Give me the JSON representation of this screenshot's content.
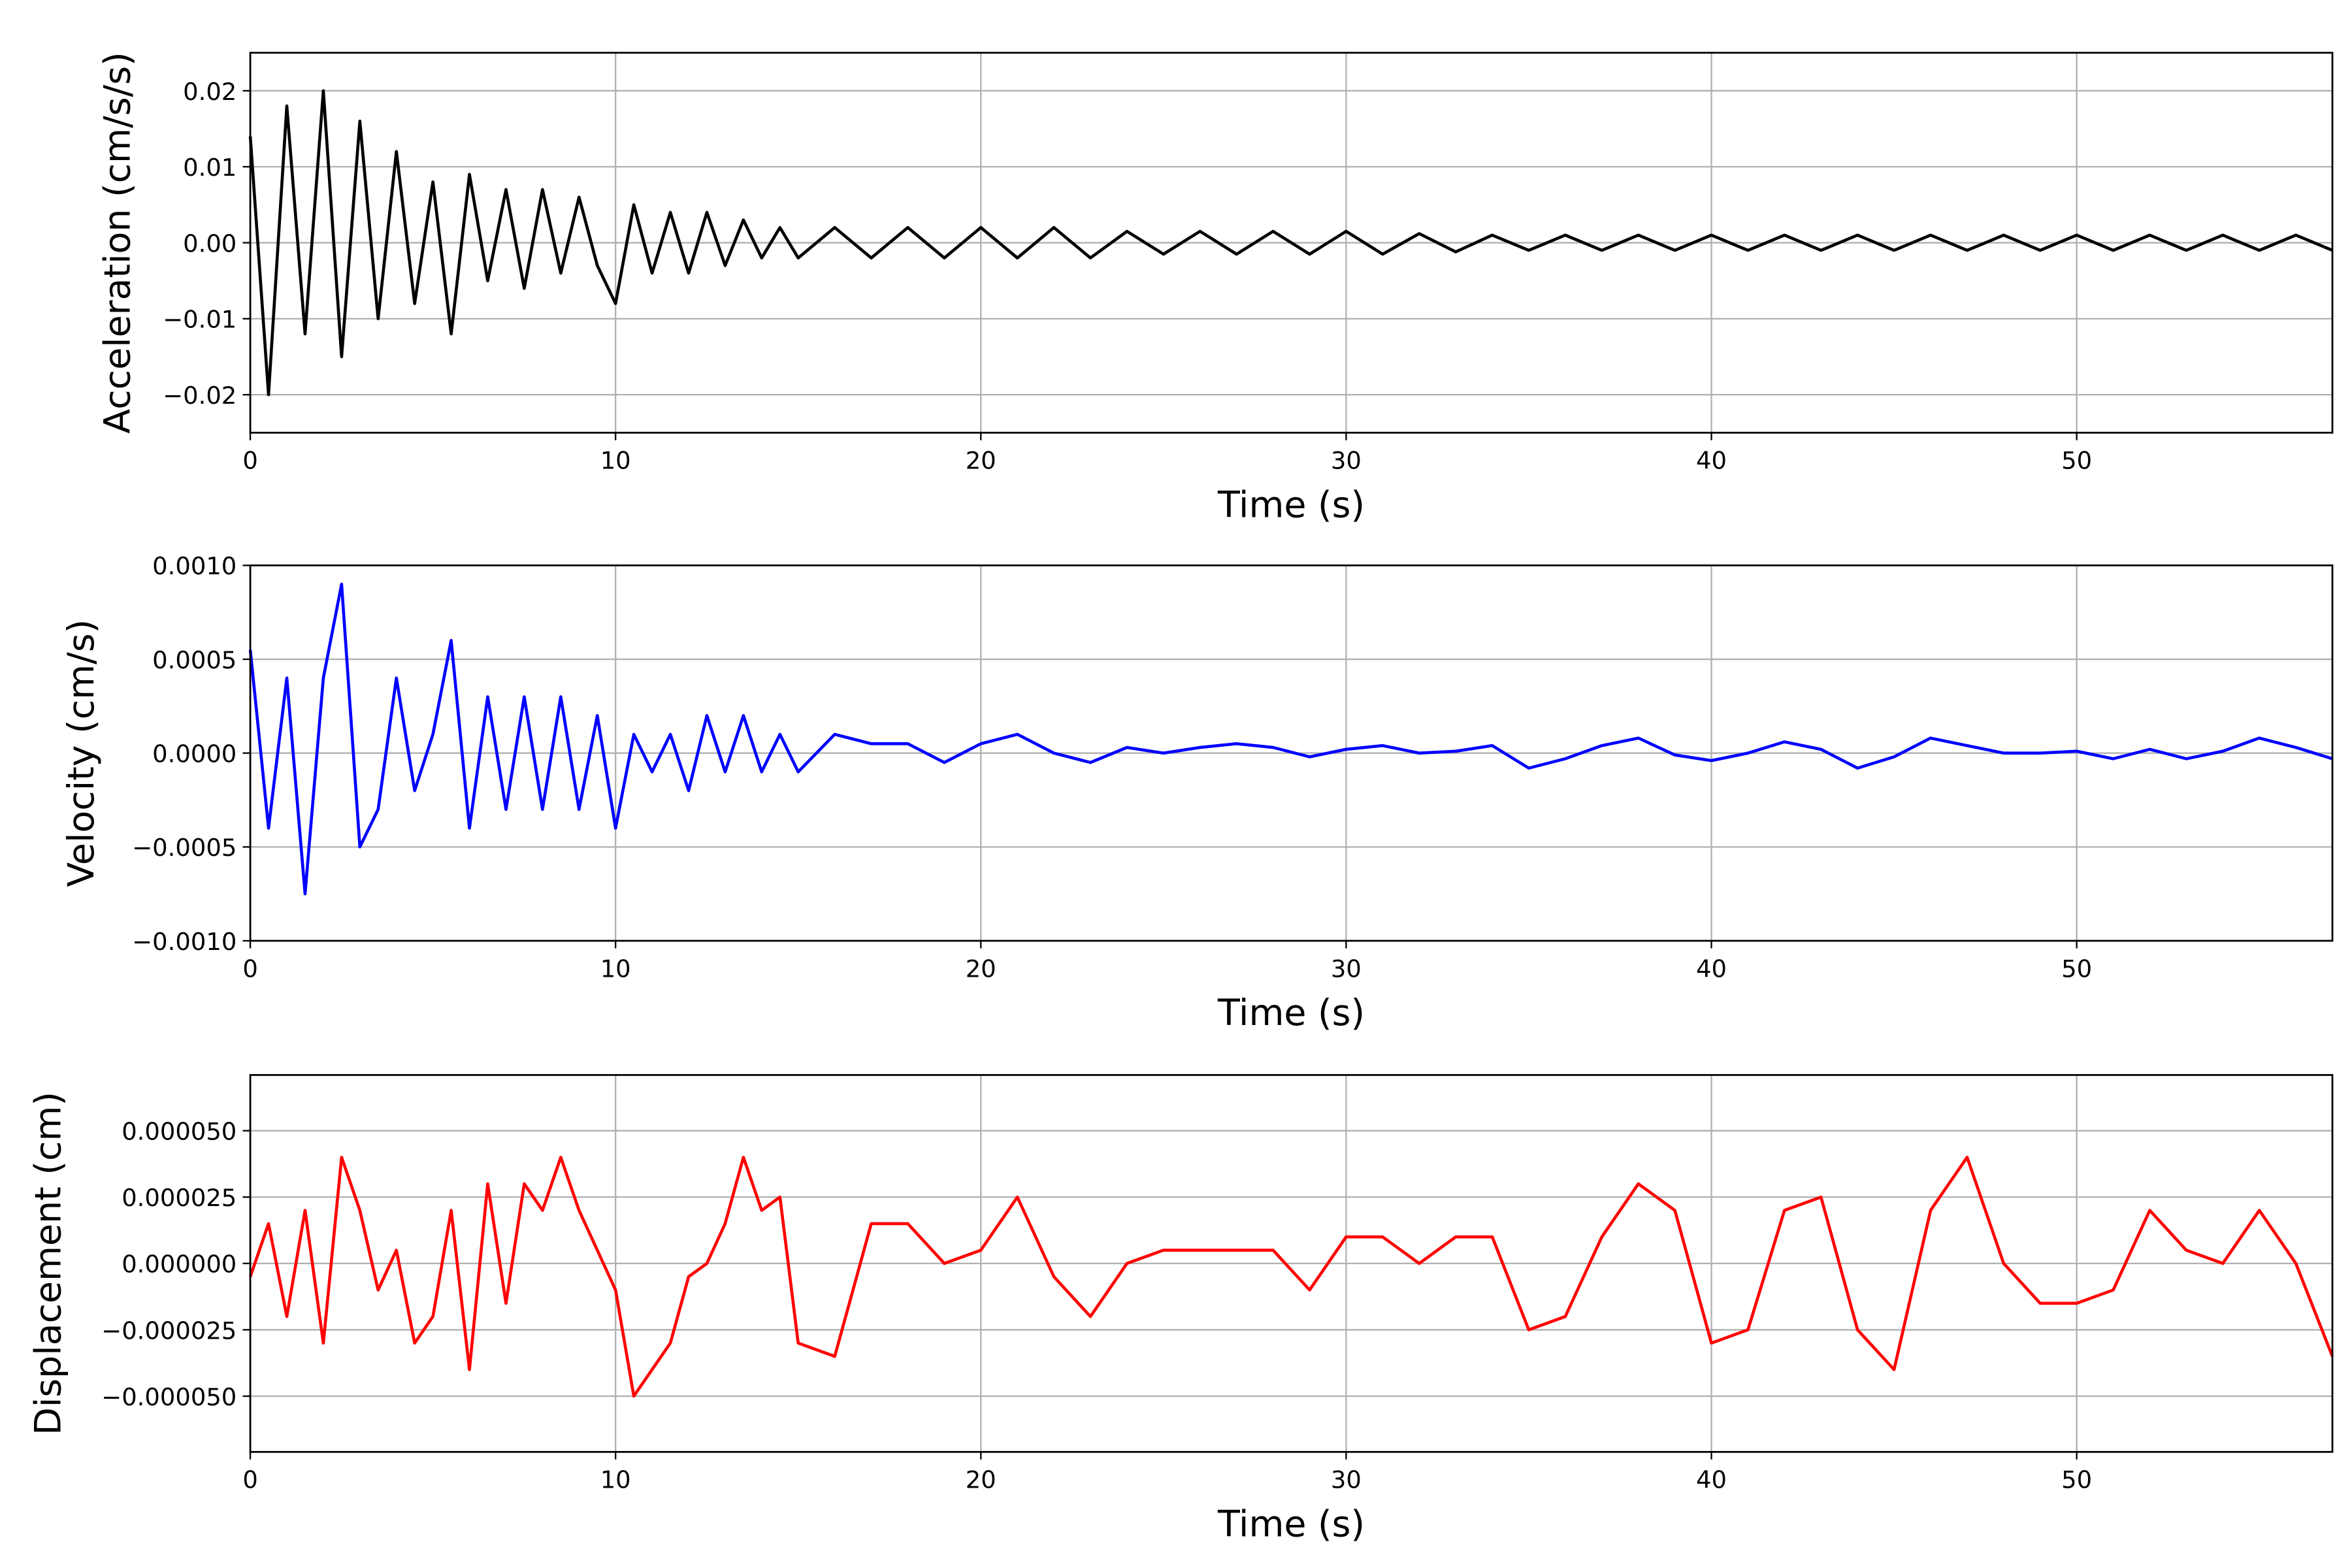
{
  "chart_data": [
    {
      "type": "line",
      "xlabel": "Time (s)",
      "ylabel": "Acceleration (cm/s/s)",
      "color": "#000000",
      "grid": true,
      "xlim": [
        0,
        57
      ],
      "xticks": [
        0,
        10,
        20,
        30,
        40,
        50
      ],
      "ylim": [
        -0.025,
        0.025
      ],
      "yticks": [
        {
          "value": -0.02,
          "label": "−0.02"
        },
        {
          "value": -0.01,
          "label": "−0.01"
        },
        {
          "value": 0,
          "label": "0.00"
        },
        0.01,
        0.02
      ],
      "x": [
        0,
        0.5,
        1,
        1.5,
        2,
        2.5,
        3,
        3.5,
        4,
        4.5,
        5,
        5.5,
        6,
        6.5,
        7,
        7.5,
        8,
        8.5,
        9,
        9.5,
        10,
        10.5,
        11,
        11.5,
        12,
        12.5,
        13,
        13.5,
        14,
        14.5,
        15,
        16,
        17,
        18,
        19,
        20,
        21,
        22,
        23,
        24,
        25,
        26,
        27,
        28,
        29,
        30,
        31,
        32,
        33,
        34,
        35,
        36,
        37,
        38,
        39,
        40,
        41,
        42,
        43,
        44,
        45,
        46,
        47,
        48,
        49,
        50,
        51,
        52,
        53,
        54,
        55,
        56,
        57
      ],
      "values": [
        0.014,
        -0.02,
        0.018,
        -0.012,
        0.02,
        -0.015,
        0.016,
        -0.01,
        0.012,
        -0.008,
        0.008,
        -0.012,
        0.009,
        -0.005,
        0.007,
        -0.006,
        0.007,
        -0.004,
        0.006,
        -0.003,
        -0.008,
        0.005,
        -0.004,
        0.004,
        -0.004,
        0.004,
        -0.003,
        0.003,
        -0.002,
        0.002,
        -0.002,
        0.002,
        -0.002,
        0.002,
        -0.002,
        0.002,
        -0.002,
        0.002,
        -0.002,
        0.0015,
        -0.0015,
        0.0015,
        -0.0015,
        0.0015,
        -0.0015,
        0.0015,
        -0.0015,
        0.0012,
        -0.0012,
        0.001,
        -0.001,
        0.001,
        -0.001,
        0.001,
        -0.001,
        0.001,
        -0.001,
        0.001,
        -0.001,
        0.001,
        -0.001,
        0.001,
        -0.001,
        0.001,
        -0.001,
        0.001,
        -0.001,
        0.001,
        -0.001,
        0.001,
        -0.001,
        0.001,
        -0.001
      ]
    },
    {
      "type": "line",
      "xlabel": "Time (s)",
      "ylabel": "Velocity (cm/s)",
      "color": "#0000ff",
      "grid": true,
      "xlim": [
        0,
        57
      ],
      "xticks": [
        0,
        10,
        20,
        30,
        40,
        50
      ],
      "ylim": [
        -0.001,
        0.001
      ],
      "yticks": [
        {
          "value": -0.001,
          "label": "−0.0010"
        },
        {
          "value": -0.0005,
          "label": "−0.0005"
        },
        {
          "value": 0,
          "label": "0.0000"
        },
        0.0005,
        {
          "value": 0.001,
          "label": "0.0010"
        }
      ],
      "x": [
        0,
        0.5,
        1,
        1.5,
        2,
        2.5,
        3,
        3.5,
        4,
        4.5,
        5,
        5.5,
        6,
        6.5,
        7,
        7.5,
        8,
        8.5,
        9,
        9.5,
        10,
        10.5,
        11,
        11.5,
        12,
        12.5,
        13,
        13.5,
        14,
        14.5,
        15,
        16,
        17,
        18,
        19,
        20,
        21,
        22,
        23,
        24,
        25,
        26,
        27,
        28,
        29,
        30,
        31,
        32,
        33,
        34,
        35,
        36,
        37,
        38,
        39,
        40,
        41,
        42,
        43,
        44,
        45,
        46,
        47,
        48,
        49,
        50,
        51,
        52,
        53,
        54,
        55,
        56,
        57
      ],
      "values": [
        0.00055,
        -0.0004,
        0.0004,
        -0.00075,
        0.0004,
        0.0009,
        -0.0005,
        -0.0003,
        0.0004,
        -0.0002,
        0.0001,
        0.0006,
        -0.0004,
        0.0003,
        -0.0003,
        0.0003,
        -0.0003,
        0.0003,
        -0.0003,
        0.0002,
        -0.0004,
        0.0001,
        -0.0001,
        0.0001,
        -0.0002,
        0.0002,
        -0.0001,
        0.0002,
        -0.0001,
        0.0001,
        -0.0001,
        0.0001,
        5e-05,
        5e-05,
        -5e-05,
        5e-05,
        0.0001,
        0,
        -5e-05,
        3e-05,
        0,
        3e-05,
        5e-05,
        3e-05,
        -2e-05,
        2e-05,
        4e-05,
        0,
        1e-05,
        4e-05,
        -8e-05,
        -3e-05,
        4e-05,
        8e-05,
        -1e-05,
        -4e-05,
        0,
        6e-05,
        2e-05,
        -8e-05,
        -2e-05,
        8e-05,
        4e-05,
        0,
        0,
        1e-05,
        -3e-05,
        2e-05,
        -3e-05,
        1e-05,
        8e-05,
        3e-05,
        -3e-05
      ]
    },
    {
      "type": "line",
      "xlabel": "Time (s)",
      "ylabel": "Displacement (cm)",
      "color": "#ff0000",
      "grid": true,
      "xlim": [
        0,
        57
      ],
      "xticks": [
        0,
        10,
        20,
        30,
        40,
        50
      ],
      "ylim": [
        -7.1e-05,
        7.1e-05
      ],
      "yticks": [
        {
          "value": -5e-05,
          "label": "−0.000050"
        },
        {
          "value": -2.5e-05,
          "label": "−0.000025"
        },
        {
          "value": 0,
          "label": "0.000000"
        },
        {
          "value": 2.5e-05,
          "label": "0.000025"
        },
        {
          "value": 5e-05,
          "label": "0.000050"
        }
      ],
      "x": [
        0,
        0.5,
        1,
        1.5,
        2,
        2.5,
        3,
        3.5,
        4,
        4.5,
        5,
        5.5,
        6,
        6.5,
        7,
        7.5,
        8,
        8.5,
        9,
        9.5,
        10,
        10.5,
        11,
        11.5,
        12,
        12.5,
        13,
        13.5,
        14,
        14.5,
        15,
        16,
        17,
        18,
        19,
        20,
        21,
        22,
        23,
        24,
        25,
        26,
        27,
        28,
        29,
        30,
        31,
        32,
        33,
        34,
        35,
        36,
        37,
        38,
        39,
        40,
        41,
        42,
        43,
        44,
        45,
        46,
        47,
        48,
        49,
        50,
        51,
        52,
        53,
        54,
        55,
        56,
        57
      ],
      "values": [
        -5e-06,
        1.5e-05,
        -2e-05,
        2e-05,
        -3e-05,
        4e-05,
        2e-05,
        -1e-05,
        5e-06,
        -3e-05,
        -2e-05,
        2e-05,
        -4e-05,
        3e-05,
        -1.5e-05,
        3e-05,
        2e-05,
        4e-05,
        2e-05,
        5e-06,
        -1e-05,
        -5e-05,
        -4e-05,
        -3e-05,
        -5e-06,
        0,
        1.5e-05,
        4e-05,
        2e-05,
        2.5e-05,
        -3e-05,
        -3.5e-05,
        1.5e-05,
        1.5e-05,
        0,
        5e-06,
        2.5e-05,
        -5e-06,
        -2e-05,
        0,
        5e-06,
        5e-06,
        5e-06,
        5e-06,
        -1e-05,
        1e-05,
        1e-05,
        0,
        1e-05,
        1e-05,
        -2.5e-05,
        -2e-05,
        1e-05,
        3e-05,
        2e-05,
        -3e-05,
        -2.5e-05,
        2e-05,
        2.5e-05,
        -2.5e-05,
        -4e-05,
        2e-05,
        4e-05,
        0,
        -1.5e-05,
        -1.5e-05,
        -1e-05,
        2e-05,
        5e-06,
        0,
        2e-05,
        0,
        -3.5e-05
      ]
    }
  ]
}
